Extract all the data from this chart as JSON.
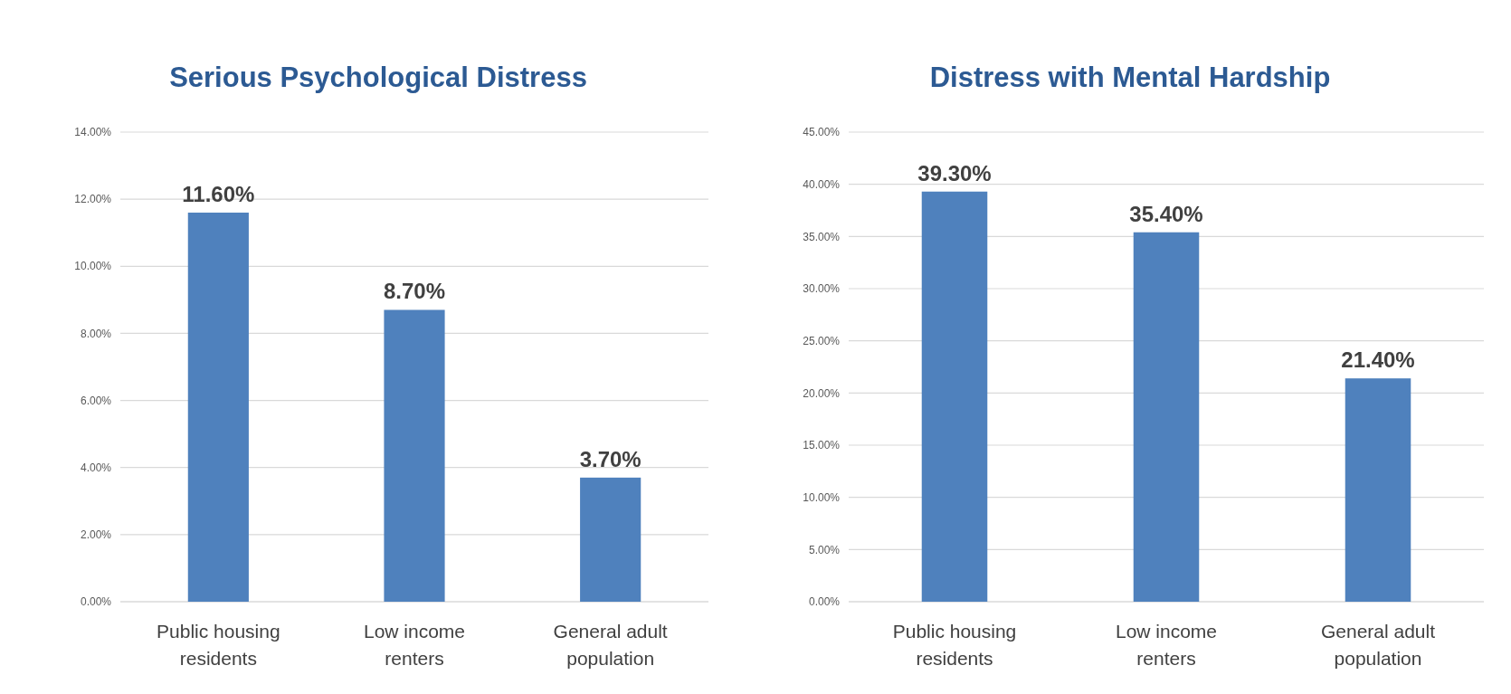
{
  "chart_data": [
    {
      "type": "bar",
      "title": "Serious Psychological Distress",
      "categories": [
        "Public housing residents",
        "Low income renters",
        "General adult population"
      ],
      "values": [
        11.6,
        8.7,
        3.7
      ],
      "value_labels": [
        "11.60%",
        "8.70%",
        "3.70%"
      ],
      "color": "#4f81bd",
      "ylim": [
        0,
        14
      ],
      "yticks": [
        {
          "value": 0,
          "label": "0.00%"
        },
        {
          "value": 2,
          "label": "2.00%"
        },
        {
          "value": 4,
          "label": "4.00%"
        },
        {
          "value": 6,
          "label": "6.00%"
        },
        {
          "value": 8,
          "label": "8.00%"
        },
        {
          "value": 10,
          "label": "10.00%"
        },
        {
          "value": 12,
          "label": "12.00%"
        },
        {
          "value": 14,
          "label": "14.00%"
        }
      ],
      "grid": "y"
    },
    {
      "type": "bar",
      "title": "Distress with Mental Hardship",
      "categories": [
        "Public housing residents",
        "Low income renters",
        "General adult population"
      ],
      "values": [
        39.3,
        35.4,
        21.4
      ],
      "value_labels": [
        "39.30%",
        "35.40%",
        "21.40%"
      ],
      "color": "#4f81bd",
      "ylim": [
        0,
        45
      ],
      "yticks": [
        {
          "value": 0,
          "label": "0.00%"
        },
        {
          "value": 5,
          "label": "5.00%"
        },
        {
          "value": 10,
          "label": "10.00%"
        },
        {
          "value": 15,
          "label": "15.00%"
        },
        {
          "value": 20,
          "label": "20.00%"
        },
        {
          "value": 25,
          "label": "25.00%"
        },
        {
          "value": 30,
          "label": "30.00%"
        },
        {
          "value": 35,
          "label": "35.00%"
        },
        {
          "value": 40,
          "label": "40.00%"
        },
        {
          "value": 45,
          "label": "45.00%"
        }
      ],
      "grid": "y"
    }
  ]
}
